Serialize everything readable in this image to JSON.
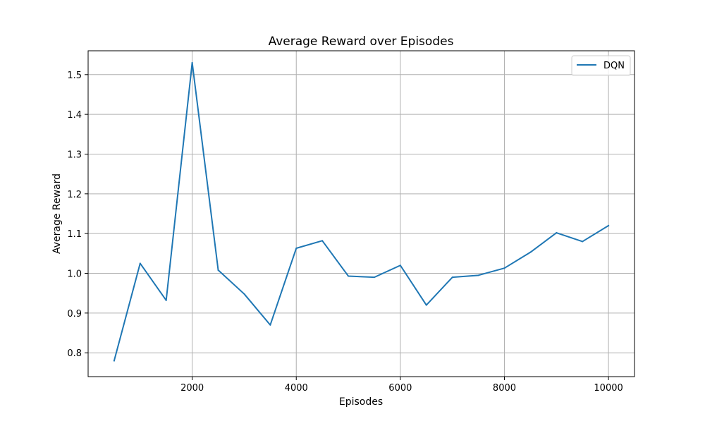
{
  "chart_data": {
    "type": "line",
    "title": "Average Reward over Episodes",
    "xlabel": "Episodes",
    "ylabel": "Average Reward",
    "xlim": [
      0,
      10500
    ],
    "ylim": [
      0.74,
      1.56
    ],
    "xticks": [
      2000,
      4000,
      6000,
      8000,
      10000
    ],
    "yticks": [
      0.8,
      0.9,
      1.0,
      1.1,
      1.2,
      1.3,
      1.4,
      1.5
    ],
    "ytick_labels": [
      "0.8",
      "0.9",
      "1.0",
      "1.1",
      "1.2",
      "1.3",
      "1.4",
      "1.5"
    ],
    "grid": true,
    "legend_position": "top-right",
    "series": [
      {
        "name": "DQN",
        "color": "#1f77b4",
        "x": [
          500,
          1000,
          1500,
          2000,
          2500,
          3000,
          3500,
          4000,
          4500,
          5000,
          5500,
          6000,
          6500,
          7000,
          7500,
          8000,
          8500,
          9000,
          9500,
          10000
        ],
        "y": [
          0.78,
          1.025,
          0.932,
          1.53,
          1.008,
          0.948,
          0.87,
          1.063,
          1.082,
          0.993,
          0.99,
          1.02,
          0.92,
          0.99,
          0.995,
          1.013,
          1.053,
          1.102,
          1.08,
          1.12
        ]
      }
    ]
  }
}
